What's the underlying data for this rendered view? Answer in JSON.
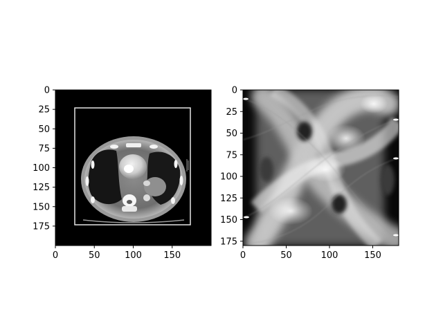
{
  "colors": {
    "background": "#ffffff",
    "axis": "#000000",
    "image_background": "#000000"
  },
  "chart_data": [
    {
      "type": "heatmap",
      "content": "grayscale CT axial chest slice with rectangular white frame",
      "x_ticks": [
        {
          "value": 0,
          "label": "0"
        },
        {
          "value": 50,
          "label": "50"
        },
        {
          "value": 100,
          "label": "100"
        },
        {
          "value": 150,
          "label": "150"
        }
      ],
      "y_ticks": [
        {
          "value": 0,
          "label": "0"
        },
        {
          "value": 25,
          "label": "25"
        },
        {
          "value": 50,
          "label": "50"
        },
        {
          "value": 75,
          "label": "75"
        },
        {
          "value": 100,
          "label": "100"
        },
        {
          "value": 125,
          "label": "125"
        },
        {
          "value": 150,
          "label": "150"
        },
        {
          "value": 175,
          "label": "175"
        }
      ],
      "xlim": [
        0,
        200
      ],
      "ylim": [
        200,
        0
      ],
      "frame_rect": {
        "x0": 25,
        "y0": 23,
        "x1": 173,
        "y1": 173
      },
      "title": "",
      "xlabel": "",
      "ylabel": "",
      "grid": false
    },
    {
      "type": "heatmap",
      "content": "grayscale sinogram (Radon transform) of the CT slice",
      "x_ticks": [
        {
          "value": 0,
          "label": "0"
        },
        {
          "value": 50,
          "label": "50"
        },
        {
          "value": 100,
          "label": "100"
        },
        {
          "value": 150,
          "label": "150"
        }
      ],
      "y_ticks": [
        {
          "value": 0,
          "label": "0"
        },
        {
          "value": 25,
          "label": "25"
        },
        {
          "value": 50,
          "label": "50"
        },
        {
          "value": 75,
          "label": "75"
        },
        {
          "value": 100,
          "label": "100"
        },
        {
          "value": 125,
          "label": "125"
        },
        {
          "value": 150,
          "label": "150"
        },
        {
          "value": 175,
          "label": "175"
        }
      ],
      "xlim": [
        0,
        180
      ],
      "ylim": [
        180,
        0
      ],
      "title": "",
      "xlabel": "",
      "ylabel": "",
      "grid": false
    }
  ]
}
